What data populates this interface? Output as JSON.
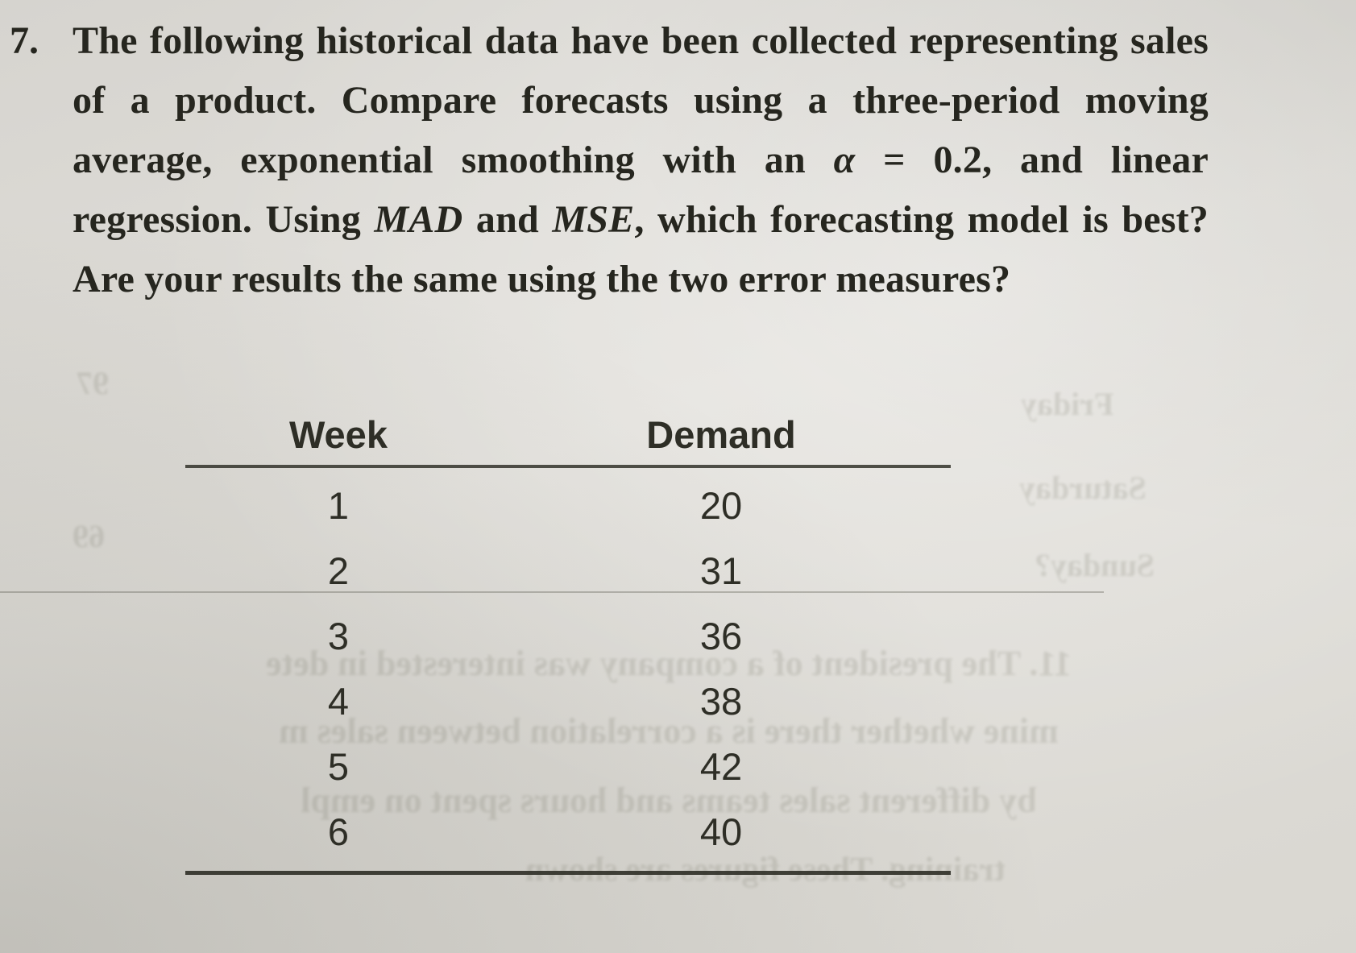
{
  "problem": {
    "number": "7.",
    "segments": [
      {
        "t": "The following historical data have been collected representing sales of a product. Compare forecasts using a three-period moving average, exponential smoothing with an "
      },
      {
        "t": "α",
        "i": true
      },
      {
        "t": " = 0.2, and linear regression. Using "
      },
      {
        "t": "MAD",
        "i": true
      },
      {
        "t": " and "
      },
      {
        "t": "MSE",
        "i": true
      },
      {
        "t": ", which forecasting model is best? Are your results the same using the two error measures?"
      }
    ]
  },
  "table": {
    "headers": {
      "week": "Week",
      "demand": "Demand"
    },
    "rows": [
      {
        "week": "1",
        "demand": "20"
      },
      {
        "week": "2",
        "demand": "31"
      },
      {
        "week": "3",
        "demand": "36"
      },
      {
        "week": "4",
        "demand": "38"
      },
      {
        "week": "5",
        "demand": "42"
      },
      {
        "week": "6",
        "demand": "40"
      }
    ]
  },
  "bleedthrough": {
    "lines": [
      {
        "t": "Friday"
      },
      {
        "t": "Saturday"
      },
      {
        "t": "Sunday?"
      },
      {
        "t": "11. The president of a company was interested in dete"
      },
      {
        "t": "mine whether there is a correlation between sales m"
      },
      {
        "t": "by different sales teams and hours spent on empl"
      },
      {
        "t": "training. These figures are shown"
      },
      {
        "t": "97"
      },
      {
        "t": "69"
      }
    ]
  },
  "colors": {
    "ink": "#26261f",
    "table_ink": "#2e2e26"
  }
}
